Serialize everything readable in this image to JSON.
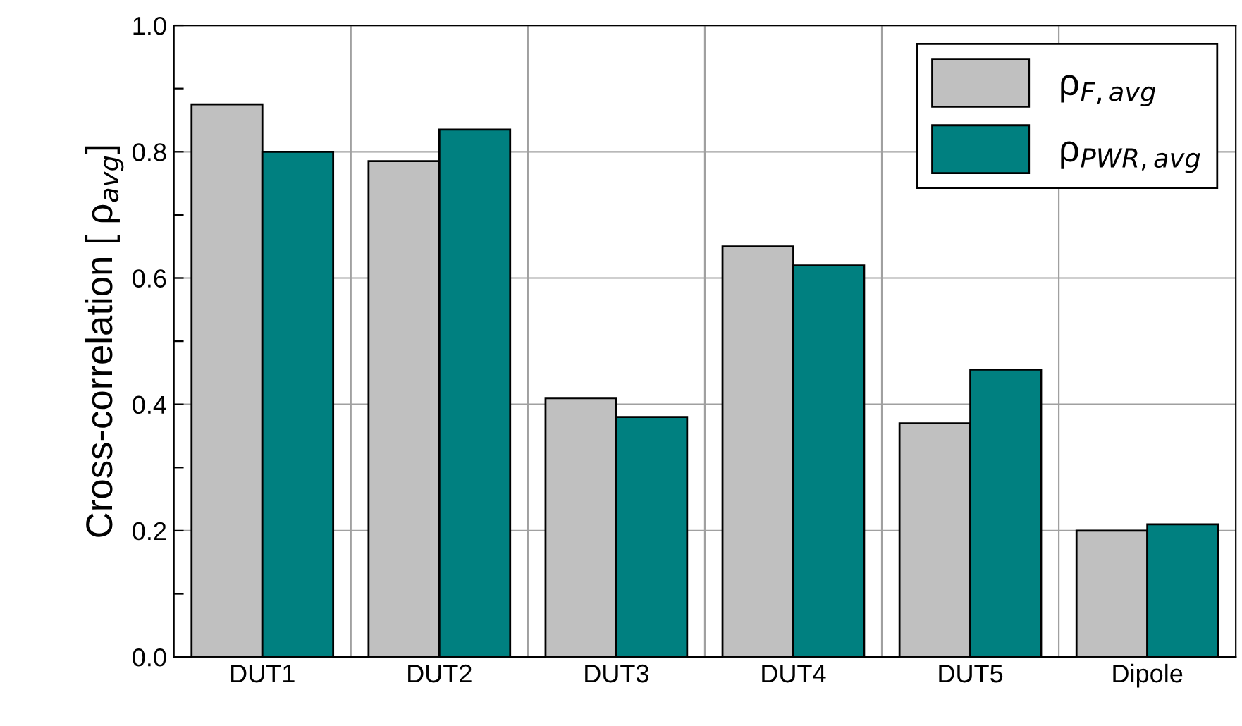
{
  "chart_data": {
    "type": "bar",
    "ylabel": "Cross-correlation [ ρ$_{avg}$]",
    "categories": [
      "DUT1",
      "DUT2",
      "DUT3",
      "DUT4",
      "DUT5",
      "Dipole"
    ],
    "series": [
      {
        "name": "ρ$_{F,avg}$",
        "color": "#c0c0c0",
        "values": [
          0.875,
          0.785,
          0.41,
          0.65,
          0.37,
          0.2
        ]
      },
      {
        "name": "ρ$_{PWR,avg}$",
        "color": "#008080",
        "values": [
          0.8,
          0.835,
          0.38,
          0.62,
          0.455,
          0.21
        ]
      }
    ],
    "ylim": [
      0,
      1.0
    ],
    "yticks": [
      {
        "value": 0,
        "label": "0.0"
      },
      {
        "value": 0.1,
        "label": null
      },
      {
        "value": 0.2,
        "label": "0.2"
      },
      {
        "value": 0.3,
        "label": null
      },
      {
        "value": 0.4,
        "label": "0.4"
      },
      {
        "value": 0.5,
        "label": null
      },
      {
        "value": 0.6,
        "label": "0.6"
      },
      {
        "value": 0.7,
        "label": null
      },
      {
        "value": 0.8,
        "label": "0.8"
      },
      {
        "value": 0.9,
        "label": null
      },
      {
        "value": 1.0,
        "label": "1.0"
      }
    ],
    "grid": true,
    "legend": "top right"
  }
}
